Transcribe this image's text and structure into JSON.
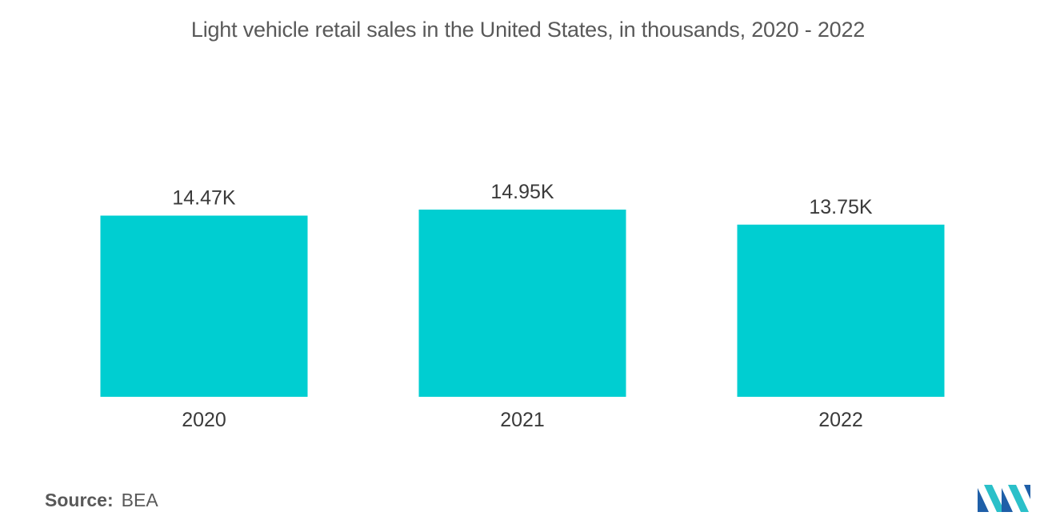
{
  "chart_data": {
    "type": "bar",
    "title": "Light vehicle retail sales in the United States, in thousands, 2020 - 2022",
    "categories": [
      "2020",
      "2021",
      "2022"
    ],
    "values": [
      14.47,
      14.95,
      13.75
    ],
    "value_labels": [
      "14.47K",
      "14.95K",
      "13.75K"
    ],
    "xlabel": "",
    "ylabel": "",
    "ylim": [
      0,
      14.95
    ],
    "grid": false,
    "legend": "none",
    "bar_color": "#00ced1"
  },
  "source": {
    "label": "Source:",
    "value": "BEA"
  },
  "logo": {
    "icon": "mordor-intelligence-logo",
    "colors": [
      "#1f5fa8",
      "#2bc0c9"
    ]
  }
}
